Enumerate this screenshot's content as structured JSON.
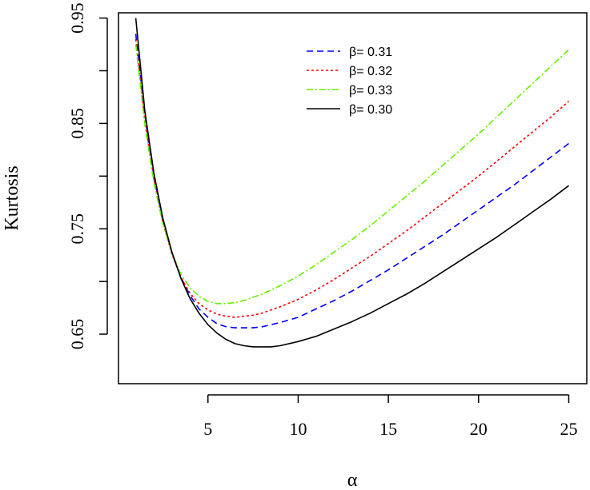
{
  "chart_data": {
    "type": "line",
    "title": "",
    "xlabel": "α",
    "ylabel": "Kurtosis",
    "xlim": [
      0.04,
      26.0
    ],
    "ylim": [
      0.603,
      0.955
    ],
    "xticks": [
      5,
      10,
      15,
      20,
      25
    ],
    "xtick_labels": [
      "5",
      "10",
      "15",
      "20",
      "25"
    ],
    "yticks": [
      0.65,
      0.7,
      0.75,
      0.8,
      0.85,
      0.9,
      0.95
    ],
    "ytick_labels": [
      {
        "value": 0.65,
        "label": "0.65"
      },
      {
        "value": 0.75,
        "label": "0.75"
      },
      {
        "value": 0.85,
        "label": "0.85"
      },
      {
        "value": 0.95,
        "label": "0.95"
      }
    ],
    "grid": false,
    "legend_position": "top-right",
    "series": [
      {
        "name": "β= 0.31",
        "color": "#0000ff",
        "dash": "8,5",
        "width": 1.6,
        "x": [
          1.0,
          1.5,
          2.0,
          2.5,
          3.0,
          3.5,
          4.0,
          4.5,
          5.0,
          5.5,
          6.0,
          6.5,
          7.0,
          7.5,
          8.0,
          9.0,
          10.0,
          11.0,
          12.0,
          13.0,
          14.0,
          15.0,
          16.0,
          17.0,
          18.0,
          19.0,
          20.0,
          21.0,
          22.0,
          23.0,
          24.0,
          25.0
        ],
        "y": [
          0.935,
          0.858,
          0.8,
          0.758,
          0.727,
          0.704,
          0.687,
          0.674,
          0.666,
          0.66,
          0.657,
          0.656,
          0.656,
          0.656,
          0.657,
          0.661,
          0.666,
          0.674,
          0.682,
          0.691,
          0.701,
          0.711,
          0.722,
          0.733,
          0.744,
          0.756,
          0.768,
          0.78,
          0.792,
          0.805,
          0.818,
          0.831
        ]
      },
      {
        "name": "β= 0.32",
        "color": "#ff0000",
        "dash": "3,3",
        "width": 1.6,
        "x": [
          1.0,
          1.5,
          2.0,
          2.5,
          3.0,
          3.5,
          4.0,
          4.5,
          5.0,
          5.5,
          6.0,
          6.5,
          7.0,
          7.5,
          8.0,
          9.0,
          10.0,
          11.0,
          12.0,
          13.0,
          14.0,
          15.0,
          16.0,
          17.0,
          18.0,
          19.0,
          20.0,
          21.0,
          22.0,
          23.0,
          24.0,
          25.0
        ],
        "y": [
          0.93,
          0.853,
          0.797,
          0.756,
          0.726,
          0.704,
          0.689,
          0.679,
          0.673,
          0.669,
          0.667,
          0.666,
          0.667,
          0.668,
          0.67,
          0.676,
          0.683,
          0.692,
          0.702,
          0.713,
          0.724,
          0.736,
          0.748,
          0.761,
          0.774,
          0.787,
          0.8,
          0.814,
          0.828,
          0.842,
          0.856,
          0.871
        ]
      },
      {
        "name": "β= 0.33",
        "color": "#66ee00",
        "dash": "8,3,2,3",
        "width": 1.6,
        "x": [
          1.0,
          1.5,
          2.0,
          2.5,
          3.0,
          3.5,
          4.0,
          4.5,
          5.0,
          5.5,
          6.0,
          6.5,
          7.0,
          7.5,
          8.0,
          9.0,
          10.0,
          11.0,
          12.0,
          13.0,
          14.0,
          15.0,
          16.0,
          17.0,
          18.0,
          19.0,
          20.0,
          21.0,
          22.0,
          23.0,
          24.0,
          25.0
        ],
        "y": [
          0.925,
          0.849,
          0.794,
          0.755,
          0.727,
          0.707,
          0.694,
          0.686,
          0.681,
          0.679,
          0.679,
          0.68,
          0.682,
          0.685,
          0.688,
          0.696,
          0.705,
          0.716,
          0.728,
          0.74,
          0.753,
          0.767,
          0.781,
          0.795,
          0.81,
          0.825,
          0.84,
          0.856,
          0.872,
          0.888,
          0.904,
          0.92
        ]
      },
      {
        "name": "β= 0.30",
        "color": "#000000",
        "dash": "",
        "width": 1.6,
        "x": [
          1.0,
          1.5,
          2.0,
          2.5,
          3.0,
          3.5,
          4.0,
          4.5,
          5.0,
          5.5,
          6.0,
          6.5,
          7.0,
          7.5,
          8.0,
          8.5,
          9.0,
          10.0,
          11.0,
          12.0,
          13.0,
          14.0,
          15.0,
          16.0,
          17.0,
          18.0,
          19.0,
          20.0,
          21.0,
          22.0,
          23.0,
          24.0,
          25.0
        ],
        "y": [
          0.95,
          0.862,
          0.803,
          0.76,
          0.728,
          0.703,
          0.684,
          0.67,
          0.659,
          0.651,
          0.645,
          0.641,
          0.639,
          0.638,
          0.638,
          0.638,
          0.639,
          0.643,
          0.648,
          0.655,
          0.662,
          0.67,
          0.679,
          0.688,
          0.698,
          0.709,
          0.72,
          0.731,
          0.742,
          0.754,
          0.766,
          0.778,
          0.791
        ]
      }
    ]
  }
}
